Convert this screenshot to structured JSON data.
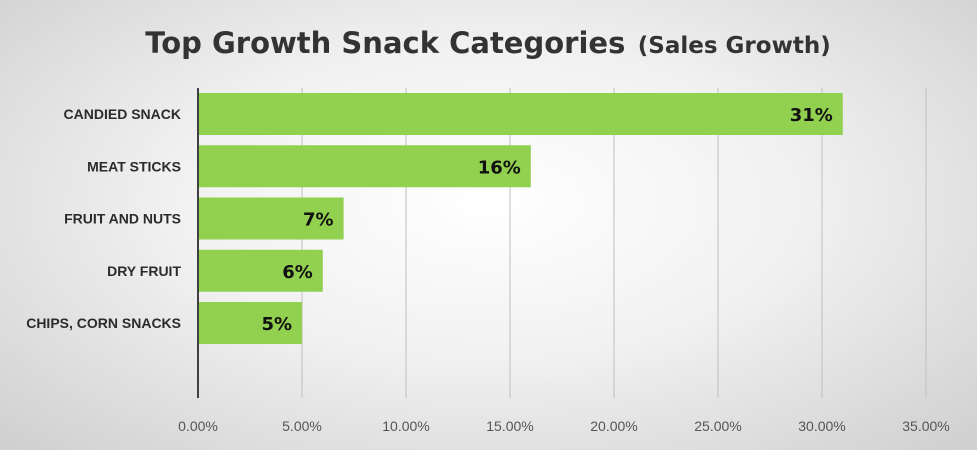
{
  "chart_data": {
    "type": "bar",
    "orientation": "horizontal",
    "title": "Top Growth Snack Categories",
    "subtitle": "(Sales Growth)",
    "categories": [
      "CANDIED SNACK",
      "MEAT STICKS",
      "FRUIT AND NUTS",
      "DRY FRUIT",
      "CHIPS, CORN SNACKS"
    ],
    "values": [
      0.31,
      0.16,
      0.07,
      0.06,
      0.05
    ],
    "data_labels": [
      "31%",
      "16%",
      "7%",
      "6%",
      "5%"
    ],
    "x_ticks": [
      "0.00%",
      "5.00%",
      "10.00%",
      "15.00%",
      "20.00%",
      "25.00%",
      "30.00%",
      "35.00%"
    ],
    "xlim": [
      0,
      0.35
    ],
    "xlabel": "",
    "ylabel": "",
    "grid": "vertical",
    "legend": "none",
    "colors": {
      "bar": "#92d050",
      "gridline": "#bfbfbf",
      "axis": "#404040"
    }
  }
}
